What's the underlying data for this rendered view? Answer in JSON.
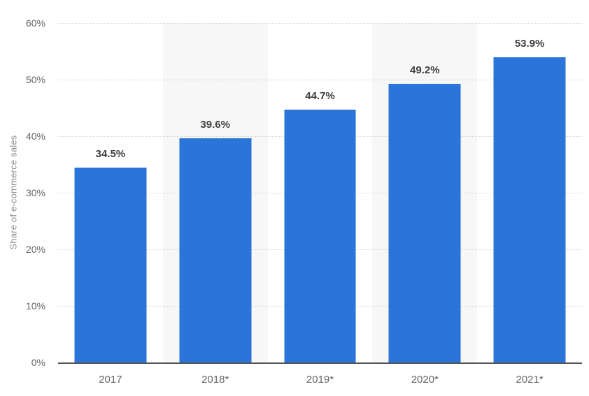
{
  "chart_data": {
    "type": "bar",
    "title": "",
    "categories": [
      "2017",
      "2018*",
      "2019*",
      "2020*",
      "2021*"
    ],
    "values": [
      34.5,
      39.6,
      44.7,
      49.2,
      53.9
    ],
    "value_labels": [
      "34.5%",
      "39.6%",
      "44.7%",
      "49.2%",
      "53.9%"
    ],
    "xlabel": "",
    "ylabel": "Share of e-commerce sales",
    "ylim": [
      0,
      60
    ],
    "ytick_step": 10,
    "ytick_labels": [
      "0%",
      "10%",
      "20%",
      "30%",
      "40%",
      "50%",
      "60%"
    ],
    "grid": "horizontal dotted lines at every 10%",
    "legend": "none",
    "plot_band_categories": [
      "2018*",
      "2020*"
    ],
    "style": {
      "bar_color": "#2a74da",
      "plot_band_color": "#f7f7f7",
      "gridline_color": "#d6d6d6",
      "axis_line_color": "#545454",
      "tick_label_color": "#666666",
      "value_label_color": "#404040",
      "axis_title_color": "#8e8e8e",
      "background_color": "#ffffff"
    }
  }
}
